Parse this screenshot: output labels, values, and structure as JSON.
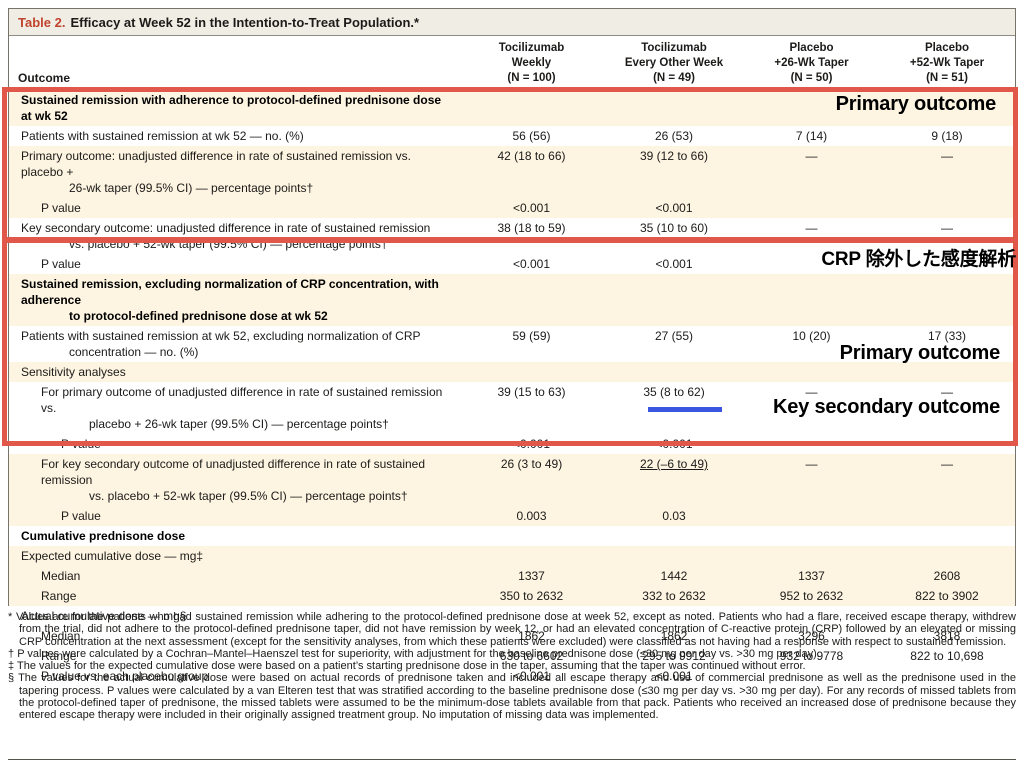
{
  "title": {
    "label": "Table 2.",
    "text": "Efficacy at Week 52 in the Intention-to-Treat Population.*"
  },
  "table": {
    "outcome_header": "Outcome",
    "columns": [
      {
        "line1": "Tocilizumab",
        "line2": "Weekly",
        "n": "(N = 100)"
      },
      {
        "line1": "Tocilizumab",
        "line2": "Every Other Week",
        "n": "(N = 49)"
      },
      {
        "line1": "Placebo",
        "line2": "+26-Wk Taper",
        "n": "(N = 50)"
      },
      {
        "line1": "Placebo",
        "line2": "+52-Wk Taper",
        "n": "(N = 51)"
      }
    ],
    "rows": [
      {
        "label": [
          "Sustained remission with adherence to protocol-defined prednisone dose at wk 52"
        ],
        "bold": true,
        "bg": "cream",
        "indent": 0,
        "values": [
          "",
          "",
          "",
          ""
        ]
      },
      {
        "label": [
          "Patients with sustained remission at wk 52 — no. (%)"
        ],
        "bg": "white",
        "indent": 0,
        "values": [
          "56 (56)",
          "26 (53)",
          "7 (14)",
          "9 (18)"
        ]
      },
      {
        "label": [
          "Primary outcome: unadjusted difference in rate of sustained remission vs. placebo +",
          "26-wk taper (99.5% CI) — percentage points†"
        ],
        "bg": "cream",
        "indent": 0,
        "values": [
          "42 (18 to 66)",
          "39 (12 to 66)",
          "—",
          "—"
        ]
      },
      {
        "label": [
          "P value"
        ],
        "bg": "cream",
        "indent": 1,
        "values": [
          "<0.001",
          "<0.001",
          "",
          ""
        ]
      },
      {
        "label": [
          "Key secondary outcome: unadjusted difference in rate of sustained remission",
          "vs. placebo + 52-wk taper (99.5% CI) — percentage points†"
        ],
        "bg": "white",
        "indent": 0,
        "values": [
          "38 (18 to 59)",
          "35 (10 to 60)",
          "—",
          "—"
        ]
      },
      {
        "label": [
          "P value"
        ],
        "bg": "white",
        "indent": 1,
        "values": [
          "<0.001",
          "<0.001",
          "",
          ""
        ]
      },
      {
        "label": [
          "Sustained remission, excluding normalization of CRP concentration, with adherence",
          "to protocol-defined prednisone dose at wk 52"
        ],
        "bold": true,
        "bg": "cream",
        "indent": 0,
        "values": [
          "",
          "",
          "",
          ""
        ]
      },
      {
        "label": [
          "Patients with sustained remission at wk 52, excluding normalization of CRP",
          "concentration — no. (%)"
        ],
        "bg": "white",
        "indent": 0,
        "values": [
          "59 (59)",
          "27 (55)",
          "10 (20)",
          "17 (33)"
        ]
      },
      {
        "label": [
          "Sensitivity analyses"
        ],
        "bg": "cream",
        "indent": 0,
        "values": [
          "",
          "",
          "",
          ""
        ]
      },
      {
        "label": [
          "For primary outcome of unadjusted difference in rate of sustained remission vs.",
          "placebo + 26-wk taper (99.5% CI) — percentage points†"
        ],
        "bg": "white",
        "indent": 1,
        "values": [
          "39 (15 to 63)",
          "35 (8 to 62)",
          "—",
          "—"
        ]
      },
      {
        "label": [
          "P value"
        ],
        "bg": "white",
        "indent": 2,
        "values": [
          "<0.001",
          "<0.001",
          "",
          ""
        ]
      },
      {
        "label": [
          "For key secondary outcome of unadjusted difference in rate of sustained remission",
          "vs. placebo + 52-wk taper (99.5% CI) — percentage points†"
        ],
        "bg": "cream",
        "indent": 1,
        "values": [
          "26 (3 to 49)",
          "22 (–6 to 49)",
          "—",
          "—"
        ],
        "underline_value": 1
      },
      {
        "label": [
          "P value"
        ],
        "bg": "cream",
        "indent": 2,
        "values": [
          "0.003",
          "0.03",
          "",
          ""
        ]
      },
      {
        "label": [
          "Cumulative prednisone dose"
        ],
        "bold": true,
        "bg": "white",
        "indent": 0,
        "values": [
          "",
          "",
          "",
          ""
        ]
      },
      {
        "label": [
          "Expected cumulative dose — mg‡"
        ],
        "bg": "cream",
        "indent": 0,
        "values": [
          "",
          "",
          "",
          ""
        ]
      },
      {
        "label": [
          "Median"
        ],
        "bg": "cream",
        "indent": 1,
        "values": [
          "1337",
          "1442",
          "1337",
          "2608"
        ]
      },
      {
        "label": [
          "Range"
        ],
        "bg": "cream",
        "indent": 1,
        "values": [
          "350 to 2632",
          "332 to 2632",
          "952 to 2632",
          "822 to 3902"
        ]
      },
      {
        "label": [
          "Actual cumulative dose — mg§"
        ],
        "bg": "white",
        "indent": 0,
        "values": [
          "",
          "",
          "",
          ""
        ]
      },
      {
        "label": [
          "Median"
        ],
        "bg": "white",
        "indent": 1,
        "values": [
          "1862",
          "1862",
          "3296",
          "3818"
        ]
      },
      {
        "label": [
          "Range"
        ],
        "bg": "white",
        "indent": 1,
        "values": [
          "630 to 6602",
          "295 to 9912",
          "932 to 9778",
          "822 to 10,698"
        ]
      },
      {
        "label": [
          "P value vs. each placebo group"
        ],
        "bg": "white",
        "indent": 1,
        "values": [
          "<0.001",
          "<0.001",
          "",
          ""
        ]
      }
    ]
  },
  "annotations": {
    "box_color": "#e15749",
    "underline_color": "#3a55e0",
    "labels": [
      {
        "text": "Primary outcome"
      },
      {
        "text": "CRP 除外した感度解析"
      },
      {
        "text": "Primary outcome"
      },
      {
        "text": "Key secondary outcome"
      }
    ]
  },
  "footnotes": {
    "items": [
      {
        "marker": "*",
        "text": "Values are for the patients who had sustained remission while adhering to the protocol-defined prednisone dose at week 52, except as noted. Patients who had a flare, received escape therapy, withdrew from the trial, did not adhere to the protocol-defined prednisone taper, did not have remission by week 12, or had an elevated concentration of C-reactive protein (CRP) followed by an elevated or missing CRP concentration at the next assessment (except for the sensitivity analyses, from which these patients were excluded) were classified as not having had a response with respect to sustained remission."
      },
      {
        "marker": "†",
        "text": "P values were calculated by a Cochran–Mantel–Haenszel test for superiority, with adjustment for the baseline prednisone dose (≤30 mg per day vs. >30 mg per day)."
      },
      {
        "marker": "‡",
        "text": "The values for the expected cumulative dose were based on a patient’s starting prednisone dose in the taper, assuming that the taper was continued without error."
      },
      {
        "marker": "§",
        "text": "The values for the actual cumulative dose were based on actual records of prednisone taken and included all escape therapy and use of commercial prednisone as well as the prednisone used in the tapering process. P values were calculated by a van Elteren test that was stratified according to the baseline prednisone dose (≤30 mg per day vs. >30 mg per day). For any records of missed tablets from the protocol-defined taper of prednisone, the missed tablets were assumed to be the minimum-dose tablets available from that pack. Patients who received an increased dose of prednisone because they entered escape therapy were included in their originally assigned treatment group. No imputation of missing data was implemented."
      }
    ]
  },
  "colors": {
    "row_stripe": "#fdf4e1",
    "title_bar": "#f0ede4",
    "title_accent": "#c0442e",
    "annotation_red": "#e15749",
    "annotation_blue": "#3a55e0"
  }
}
